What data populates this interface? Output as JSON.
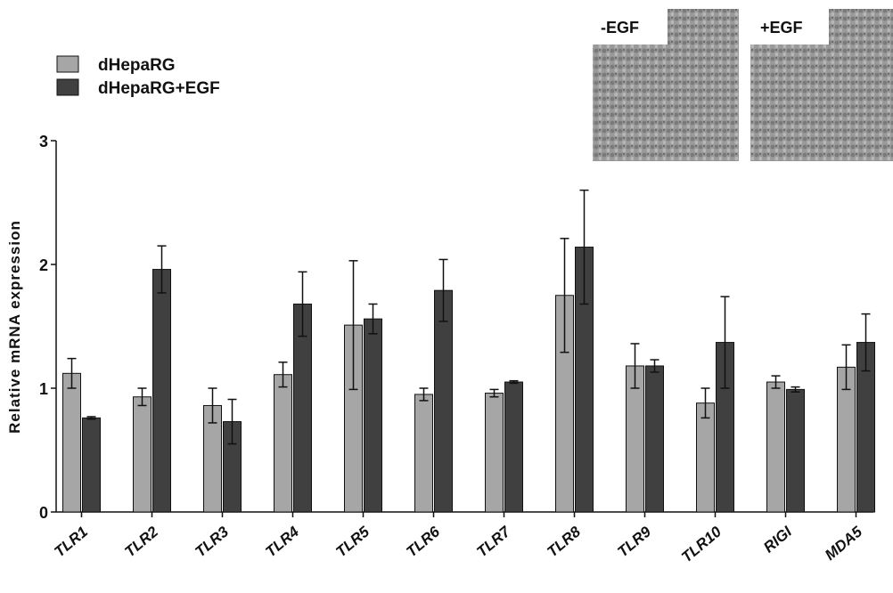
{
  "chart_data": {
    "type": "bar",
    "y_label": "Relative mRNA expression",
    "categories": [
      "TLR1",
      "TLR2",
      "TLR3",
      "TLR4",
      "TLR5",
      "TLR6",
      "TLR7",
      "TLR8",
      "TLR9",
      "TLR10",
      "RIGI",
      "MDA5"
    ],
    "series": [
      {
        "name": "dHepaRG",
        "color": "#a6a6a6",
        "values": [
          1.12,
          0.93,
          0.86,
          1.11,
          1.51,
          0.95,
          0.96,
          1.75,
          1.18,
          0.88,
          1.05,
          1.17
        ],
        "errors": [
          0.12,
          0.07,
          0.14,
          0.1,
          0.52,
          0.05,
          0.03,
          0.46,
          0.18,
          0.12,
          0.05,
          0.18
        ]
      },
      {
        "name": "dHepaRG+EGF",
        "color": "#404040",
        "values": [
          0.76,
          1.96,
          0.73,
          1.68,
          1.56,
          1.79,
          1.05,
          2.14,
          1.18,
          1.37,
          0.99,
          1.37
        ],
        "errors": [
          0.01,
          0.19,
          0.18,
          0.26,
          0.12,
          0.25,
          0.01,
          0.46,
          0.05,
          0.37,
          0.02,
          0.23
        ]
      }
    ],
    "ylim": [
      0,
      3
    ],
    "yticks": [
      0,
      1,
      2,
      3
    ],
    "legend": "upper left",
    "insets": [
      "-EGF",
      "+EGF"
    ]
  }
}
